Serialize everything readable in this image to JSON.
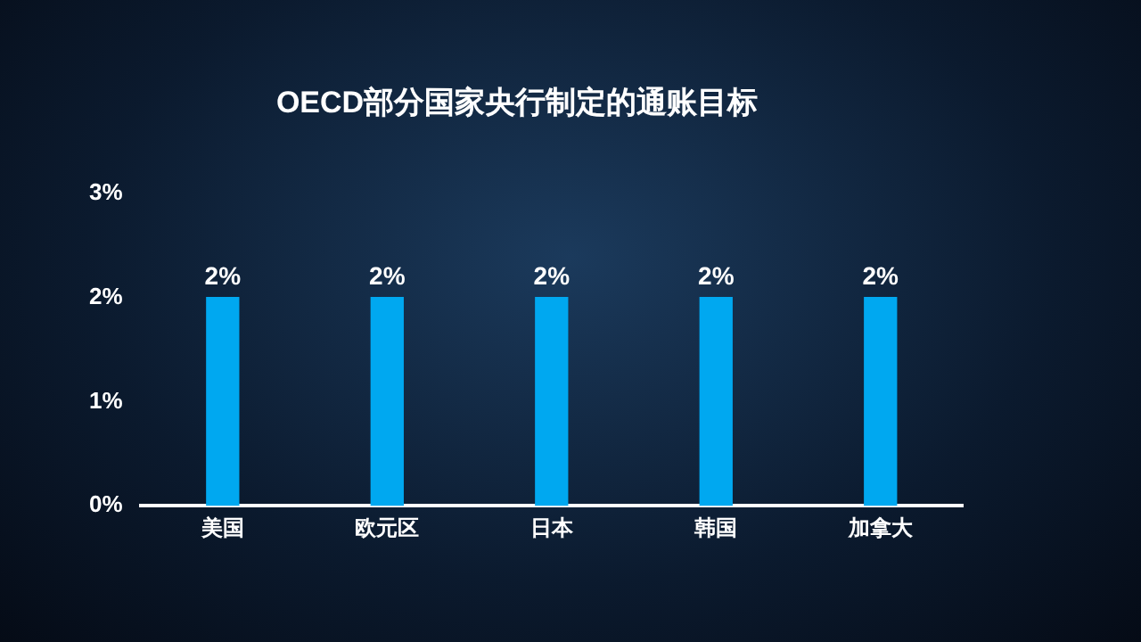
{
  "chart_data": {
    "type": "bar",
    "title": "OECD部分国家央行制定的通账目标",
    "categories": [
      "美国",
      "欧元区",
      "日本",
      "韩国",
      "加拿大"
    ],
    "values": [
      2,
      2,
      2,
      2,
      2
    ],
    "color": "#00a8f0",
    "value_labels": [
      "2%",
      "2%",
      "2%",
      "2%",
      "2%"
    ],
    "ylim": [
      0,
      3
    ],
    "yticks": [
      {
        "value": 0,
        "label": "0%"
      },
      {
        "value": 1,
        "label": "1%"
      },
      {
        "value": 2,
        "label": "2%"
      },
      {
        "value": 3,
        "label": "3%"
      }
    ],
    "grid": false,
    "legend": false
  }
}
